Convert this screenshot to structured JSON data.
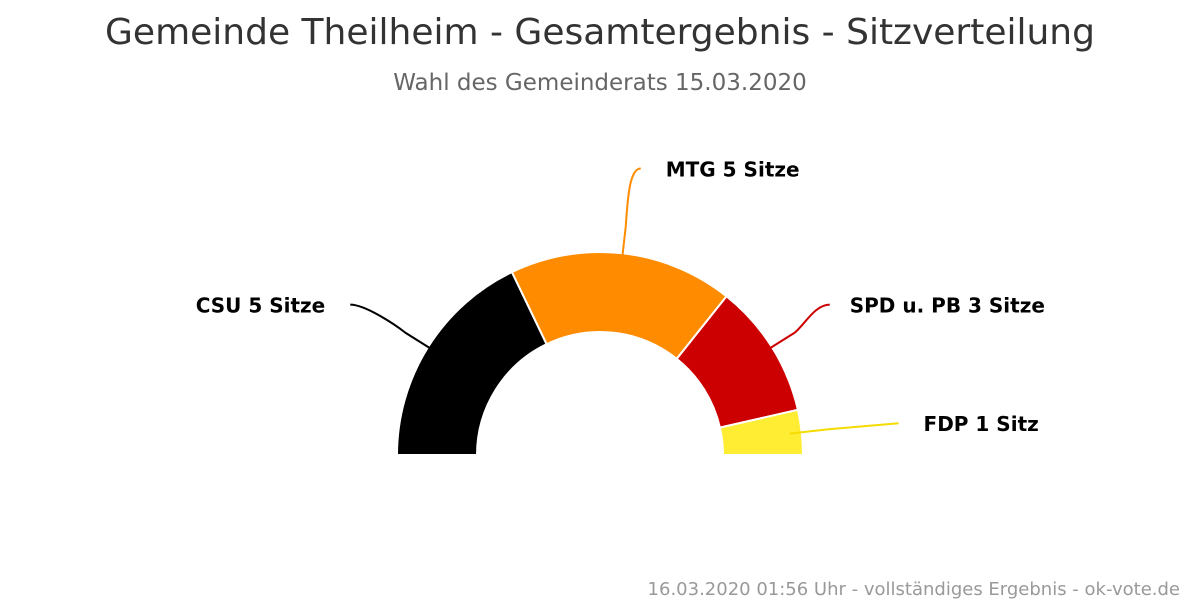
{
  "title": "Gemeinde Theilheim - Gesamtergebnis - Sitzverteilung",
  "subtitle": "Wahl des Gemeinderats 15.03.2020",
  "footer": "16.03.2020 01:56 Uhr - vollständiges Ergebnis - ok-vote.de",
  "chart_data": {
    "type": "pie",
    "variant": "semicircle-parliament",
    "title": "Gemeinde Theilheim - Gesamtergebnis - Sitzverteilung",
    "subtitle": "Wahl des Gemeinderats 15.03.2020",
    "legend": "none",
    "series": [
      {
        "values": [
          {
            "party": "CSU",
            "seats": 5,
            "label": "CSU 5 Sitze",
            "color": "#000000"
          },
          {
            "party": "MTG",
            "seats": 5,
            "label": "MTG 5 Sitze",
            "color": "#FF8C00"
          },
          {
            "party": "SPD u. PB",
            "seats": 3,
            "label": "SPD u. PB 3 Sitze",
            "color": "#CC0000"
          },
          {
            "party": "FDP",
            "seats": 1,
            "label": "FDP 1 Sitz",
            "color": "#FFED33"
          }
        ]
      }
    ]
  }
}
